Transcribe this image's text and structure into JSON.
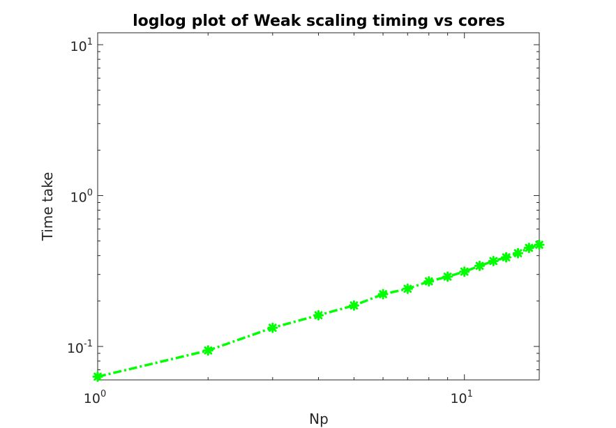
{
  "chart_data": {
    "type": "line",
    "title": "loglog plot of Weak scaling timing vs cores",
    "xlabel": "Np",
    "ylabel": "Time take",
    "xscale": "log",
    "yscale": "log",
    "xlim": [
      1,
      16
    ],
    "ylim": [
      0.06,
      12
    ],
    "x_ticks": [
      {
        "value": 1,
        "base": "10",
        "exp": "0"
      },
      {
        "value": 10,
        "base": "10",
        "exp": "1"
      }
    ],
    "y_ticks": [
      {
        "value": 0.1,
        "base": "10",
        "exp": "-1"
      },
      {
        "value": 1,
        "base": "10",
        "exp": "0"
      },
      {
        "value": 10,
        "base": "10",
        "exp": "1"
      }
    ],
    "grid": false,
    "series": [
      {
        "color": "#00ff00",
        "line_style": "dash-dot",
        "marker": "star",
        "x": [
          1,
          2,
          3,
          4,
          5,
          6,
          7,
          8,
          9,
          10,
          11,
          12,
          13,
          14,
          15,
          16
        ],
        "y": [
          0.063,
          0.094,
          0.133,
          0.161,
          0.187,
          0.222,
          0.241,
          0.27,
          0.29,
          0.313,
          0.342,
          0.368,
          0.39,
          0.415,
          0.45,
          0.472
        ]
      }
    ]
  }
}
